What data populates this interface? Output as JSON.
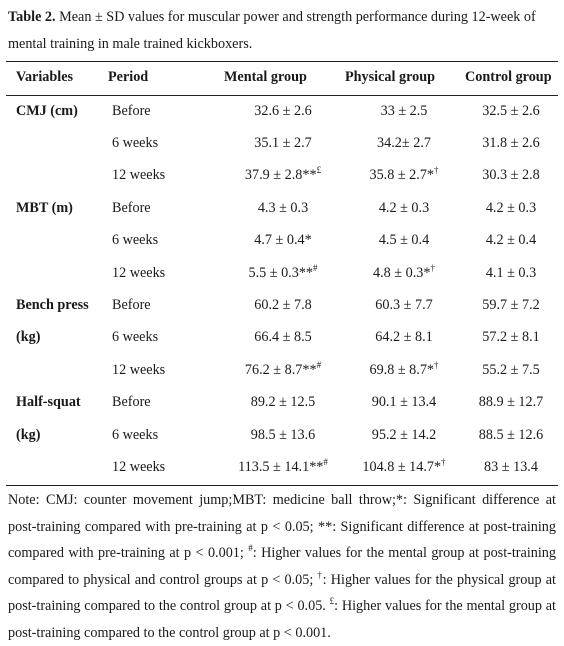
{
  "caption": {
    "label": "Table 2.",
    "text": " Mean ± SD values for muscular power and strength performance during 12-week of mental training in male trained kickboxers."
  },
  "columns": [
    "Variables",
    "Period",
    "Mental group",
    "Physical group",
    "Control group"
  ],
  "rows": [
    {
      "variable": "CMJ (cm)",
      "period": "Before",
      "mental": "32.6 ± 2.6",
      "mental_sup": "",
      "physical": "33 ± 2.5",
      "physical_sup": "",
      "control": "32.5 ± 2.6"
    },
    {
      "variable": "",
      "period": "6 weeks",
      "mental": "35.1 ± 2.7",
      "mental_sup": "",
      "physical": "34.2± 2.7",
      "physical_sup": "",
      "control": "31.8 ± 2.6"
    },
    {
      "variable": "",
      "period": "12 weeks",
      "mental": "37.9 ± 2.8**",
      "mental_sup": "£",
      "physical": "35.8 ± 2.7*",
      "physical_sup": "†",
      "control": "30.3 ± 2.8"
    },
    {
      "variable": "MBT (m)",
      "period": "Before",
      "mental": "4.3 ± 0.3",
      "mental_sup": "",
      "physical": "4.2 ± 0.3",
      "physical_sup": "",
      "control": "4.2 ± 0.3"
    },
    {
      "variable": "",
      "period": "6 weeks",
      "mental": "4.7 ± 0.4*",
      "mental_sup": "",
      "physical": "4.5 ± 0.4",
      "physical_sup": "",
      "control": "4.2 ± 0.4"
    },
    {
      "variable": "",
      "period": "12 weeks",
      "mental": "5.5 ± 0.3**",
      "mental_sup": "#",
      "physical": "4.8 ± 0.3*",
      "physical_sup": "†",
      "control": "4.1 ± 0.3"
    },
    {
      "variable": "Bench press",
      "period": "Before",
      "mental": "60.2 ± 7.8",
      "mental_sup": "",
      "physical": "60.3 ± 7.7",
      "physical_sup": "",
      "control": "59.7 ± 7.2"
    },
    {
      "variable": "(kg)",
      "period": "6 weeks",
      "mental": "66.4 ± 8.5",
      "mental_sup": "",
      "physical": "64.2 ± 8.1",
      "physical_sup": "",
      "control": "57.2 ± 8.1"
    },
    {
      "variable": "",
      "period": "12 weeks",
      "mental": "76.2 ± 8.7**",
      "mental_sup": "#",
      "physical": "69.8 ± 8.7*",
      "physical_sup": "†",
      "control": "55.2 ± 7.5"
    },
    {
      "variable": "Half-squat",
      "period": "Before",
      "mental": "89.2 ± 12.5",
      "mental_sup": "",
      "physical": "90.1 ± 13.4",
      "physical_sup": "",
      "control": "88.9 ± 12.7"
    },
    {
      "variable": "(kg)",
      "period": "6 weeks",
      "mental": "98.5 ± 13.6",
      "mental_sup": "",
      "physical": "95.2 ± 14.2",
      "physical_sup": "",
      "control": "88.5 ± 12.6"
    },
    {
      "variable": "",
      "period": "12 weeks",
      "mental": "113.5 ± 14.1**",
      "mental_sup": "#",
      "physical": "104.8 ± 14.7*",
      "physical_sup": "†",
      "control": "83 ± 13.4"
    }
  ],
  "note": {
    "p1": "Note: CMJ: counter movement jump;MBT: medicine ball throw;*: Significant difference at post-training compared with pre-training at p < 0.05; **: Significant difference at post-training compared with pre-training at p < 0.001; ",
    "s1": "#",
    "p2": ": Higher values for the mental group at post-training compared to physical and control groups at p < 0.05; ",
    "s2": "†",
    "p3": ": Higher values for the physical group at post-training compared to the control group at p < 0.05. ",
    "s3": "£",
    "p4": ": Higher values for the mental group at post-training compared to the control group at p < 0.001."
  }
}
